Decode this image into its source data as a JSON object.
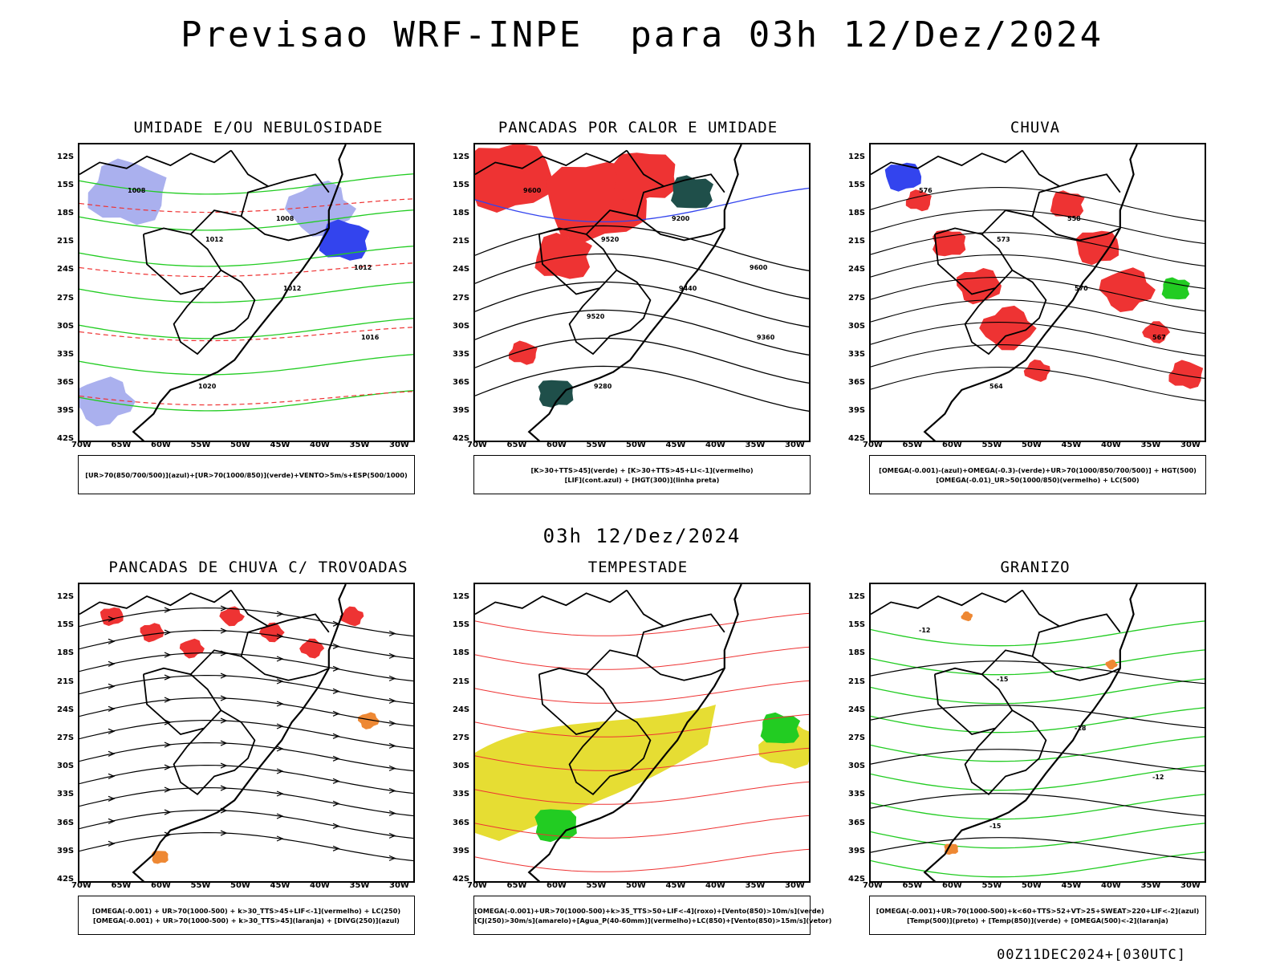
{
  "title": "Previsao WRF-INPE  para 03h 12/Dez/2024",
  "subtitle": "03h 12/Dez/2024",
  "footer": "00Z11DEC2024+[030UTC]",
  "lat_labels": [
    "12S",
    "15S",
    "18S",
    "21S",
    "24S",
    "27S",
    "30S",
    "33S",
    "36S",
    "39S",
    "42S"
  ],
  "lon_labels": [
    "70W",
    "65W",
    "60W",
    "55W",
    "50W",
    "45W",
    "40W",
    "35W",
    "30W"
  ],
  "colors": {
    "green": "#22cc22",
    "blue": "#3344ee",
    "lightblue": "#aab0ee",
    "red": "#ee3333",
    "darkgreen": "#1f4f4a",
    "yellow": "#e6dd33",
    "orange": "#ee8833",
    "purple": "#9933aa"
  },
  "panels": [
    {
      "title": "UMIDADE E/OU NEBULOSIDADE",
      "legend": [
        "[UR>70(850/700/500)](azul)+[UR>70(1000/850)](verde)+VENTO>5m/s+ESP(500/1000)"
      ],
      "labels": [
        "1008",
        "1012",
        "1012",
        "1016",
        "1020",
        "1008",
        "1012"
      ]
    },
    {
      "title": "PANCADAS POR CALOR E UMIDADE",
      "legend": [
        "[K>30+TTS>45](verde)  +  [K>30+TTS>45+LI<-1](vermelho)",
        "[LIF](cont.azul)  +  [HGT(300)](linha preta)"
      ],
      "labels": [
        "9600",
        "9520",
        "9440",
        "9360",
        "9280",
        "9200",
        "9600",
        "9520"
      ]
    },
    {
      "title": "CHUVA",
      "legend": [
        "[OMEGA(-0.001)-(azul)+OMEGA(-0.3)-(verde)+UR>70(1000/850/700/500)]  +  HGT(500)",
        "[OMEGA(-0.01)_UR>50(1000/850)(vermelho)  +  LC(500)"
      ],
      "labels": [
        "576",
        "573",
        "570",
        "567",
        "564",
        "558"
      ]
    },
    {
      "title": "PANCADAS DE CHUVA C/ TROVOADAS",
      "legend": [
        "[OMEGA(-0.001)  +  UR>70(1000-500)  +  k>30_TTS>45+LIF<-1](vermelho)  +  LC(250)",
        "[OMEGA(-0.001)  +  UR>70(1000-500)  +  k>30_TTS>45](laranja)  +  [DIVG(250)](azul)"
      ],
      "labels": []
    },
    {
      "title": "TEMPESTADE",
      "legend": [
        "[OMEGA(-0.001)+UR>70(1000-500)+k>35_TTS>50+LIF<-4](roxo)+[Vento(850)>10m/s](verde)",
        "[CJ(250)>30m/s](amarelo)+[Agua_P(40-60mm)](vermelho)+LC(850)+[Vento(850)>15m/s](vetor)"
      ],
      "labels": []
    },
    {
      "title": "GRANIZO",
      "legend": [
        "[OMEGA(-0.001)+UR>70(1000-500)+k<60+TTS>52+VT>25+SWEAT>220+LIF<-2](azul)",
        "[Temp(500)](preto)  +  [Temp(850)](verde)  +  [OMEGA(500)<-2](laranja)"
      ],
      "labels": [
        "-12",
        "-15",
        "-18",
        "-12",
        "-15"
      ]
    }
  ]
}
